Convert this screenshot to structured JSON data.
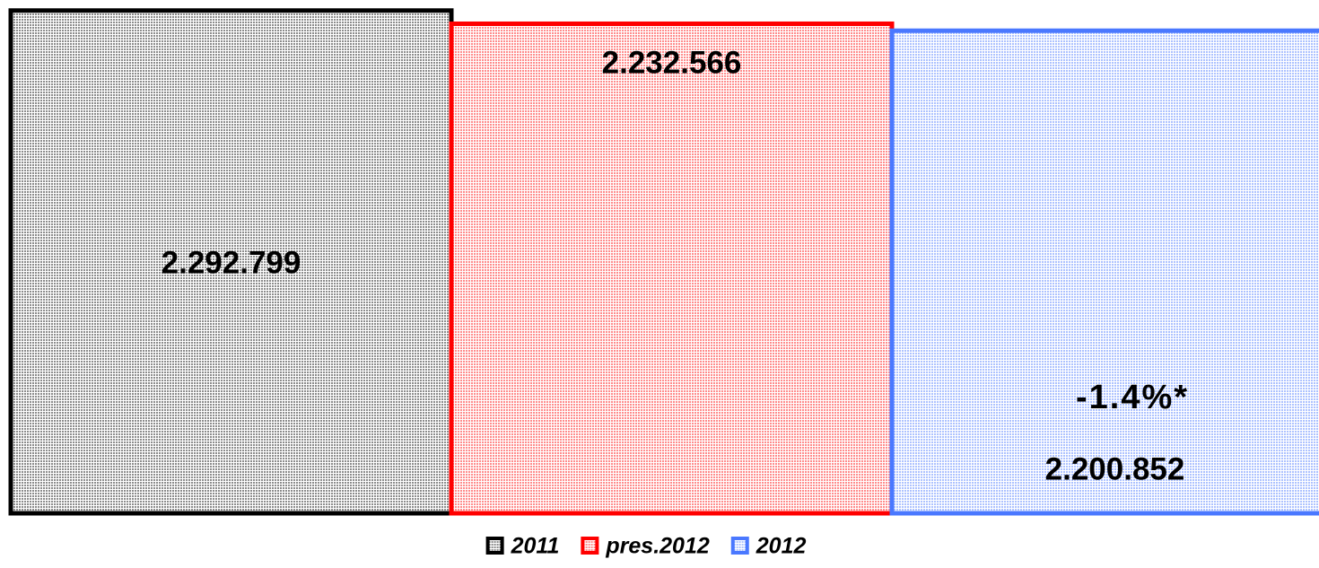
{
  "chart_data": {
    "type": "bar",
    "series": [
      {
        "name": "2011",
        "color": "#000000",
        "values": [
          2292799
        ],
        "value_labels": [
          "2.292.799"
        ]
      },
      {
        "name": "pres.2012",
        "color": "#ff0000",
        "values": [
          2232566
        ],
        "value_labels": [
          "2.232.566"
        ]
      },
      {
        "name": "2012",
        "color": "#4a78ff",
        "values": [
          2200852
        ],
        "value_labels": [
          "2.200.852"
        ]
      }
    ],
    "annotations": [
      "-1.4%*"
    ],
    "ylim": [
      0,
      2300000
    ],
    "legend": "bottom"
  }
}
